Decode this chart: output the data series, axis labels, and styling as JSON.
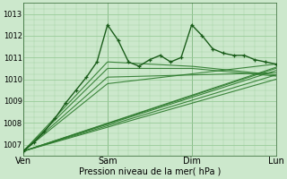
{
  "title": "",
  "xlabel": "Pression niveau de la mer( hPa )",
  "bg_color": "#cce8cc",
  "plot_bg_color": "#cce8cc",
  "grid_color": "#99cc99",
  "dark_green": "#1a5c1a",
  "mid_green": "#2d7a2d",
  "ylim": [
    1006.5,
    1013.5
  ],
  "xlim": [
    0,
    72
  ],
  "day_ticks": [
    0,
    24,
    48,
    72
  ],
  "day_labels": [
    "Ven",
    "Sam",
    "Dim",
    "Lun"
  ],
  "yticks": [
    1007,
    1008,
    1009,
    1010,
    1011,
    1012,
    1013
  ],
  "main_x": [
    0,
    3,
    6,
    9,
    12,
    15,
    18,
    21,
    24,
    27,
    30,
    33,
    36,
    39,
    42,
    45,
    48,
    51,
    54,
    57,
    60,
    63,
    66,
    69,
    72
  ],
  "main_y": [
    1006.7,
    1007.1,
    1007.6,
    1008.2,
    1008.9,
    1009.5,
    1010.1,
    1010.8,
    1012.5,
    1011.8,
    1010.8,
    1010.6,
    1010.9,
    1011.1,
    1010.8,
    1011.0,
    1012.5,
    1012.0,
    1011.4,
    1011.2,
    1011.1,
    1011.1,
    1010.9,
    1010.8,
    1010.7
  ],
  "ens_lines": [
    {
      "x": [
        0,
        72
      ],
      "y": [
        1006.7,
        1010.0
      ]
    },
    {
      "x": [
        0,
        72
      ],
      "y": [
        1006.7,
        1010.2
      ]
    },
    {
      "x": [
        0,
        72
      ],
      "y": [
        1006.7,
        1010.4
      ]
    },
    {
      "x": [
        0,
        72
      ],
      "y": [
        1006.7,
        1010.5
      ]
    },
    {
      "x": [
        0,
        72
      ],
      "y": [
        1006.7,
        1010.55
      ]
    },
    {
      "x": [
        0,
        24,
        72
      ],
      "y": [
        1006.7,
        1009.8,
        1010.7
      ]
    },
    {
      "x": [
        0,
        24,
        72
      ],
      "y": [
        1006.7,
        1010.1,
        1010.3
      ]
    },
    {
      "x": [
        0,
        24,
        48,
        72
      ],
      "y": [
        1006.7,
        1010.5,
        1010.5,
        1010.15
      ]
    },
    {
      "x": [
        0,
        24,
        48,
        72
      ],
      "y": [
        1006.7,
        1010.8,
        1010.6,
        1010.2
      ]
    }
  ]
}
